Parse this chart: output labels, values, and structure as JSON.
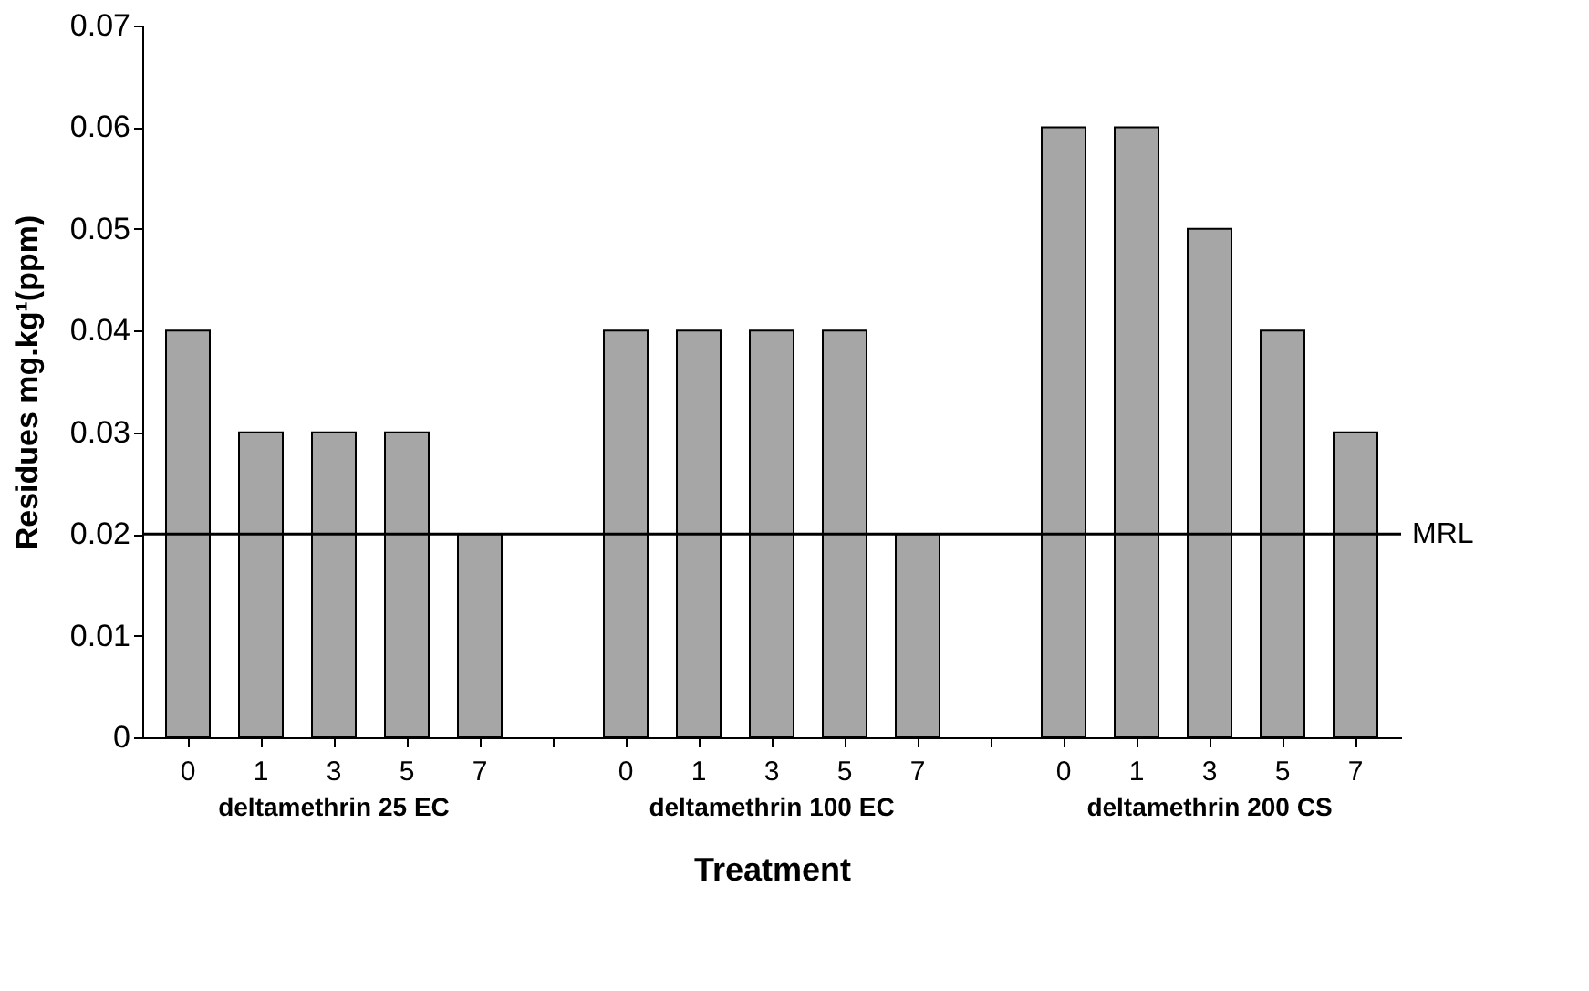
{
  "chart_data": {
    "type": "bar",
    "xlabel": "Treatment",
    "ylabel": "Residues mg.kg¹(ppm)",
    "categories": [
      "0",
      "1",
      "3",
      "5",
      "7",
      "0",
      "1",
      "3",
      "5",
      "7",
      "0",
      "1",
      "3",
      "5",
      "7"
    ],
    "values": [
      0.04,
      0.03,
      0.03,
      0.03,
      0.02,
      0.04,
      0.04,
      0.04,
      0.04,
      0.02,
      0.06,
      0.06,
      0.05,
      0.04,
      0.03
    ],
    "color": "#a6a6a6",
    "ylim": [
      0,
      0.07
    ],
    "yticks": [
      0,
      0.01,
      0.02,
      0.03,
      0.04,
      0.05,
      0.06,
      0.07
    ],
    "grid": false,
    "annotations": [
      "deltamethrin 25 EC",
      "deltamethrin 100 EC",
      "deltamethrin 200 CS"
    ],
    "ref_lines": [
      {
        "axis": "y",
        "value": 0.02,
        "label": "MRL",
        "color": "#000000"
      }
    ]
  }
}
